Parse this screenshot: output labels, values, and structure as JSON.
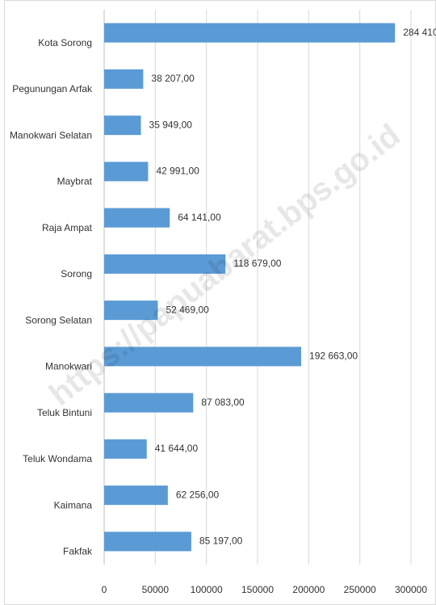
{
  "chart_data": {
    "type": "bar",
    "orientation": "horizontal",
    "categories": [
      "Kota Sorong",
      "Pegunungan Arfak",
      "Manokwari Selatan",
      "Maybrat",
      "Raja Ampat",
      "Sorong",
      "Sorong Selatan",
      "Manokwari",
      "Teluk Bintuni",
      "Teluk Wondama",
      "Kaimana",
      "Fakfak"
    ],
    "values": [
      284410,
      38207,
      35949,
      42991,
      64141,
      118679,
      52469,
      192663,
      87083,
      41644,
      62256,
      85197
    ],
    "value_labels": [
      "284 410",
      "38 207,00",
      "35 949,00",
      "42 991,00",
      "64 141,00",
      "118 679,00",
      "52 469,00",
      "192 663,00",
      "87 083,00",
      "41 644,00",
      "62 256,00",
      "85 197,00"
    ],
    "color": "#5b9bd5",
    "xlim": [
      0,
      300000
    ],
    "xticks": [
      0,
      50000,
      100000,
      150000,
      200000,
      250000,
      300000
    ],
    "grid": true,
    "watermark": "https://papuabarat.bps.go.id"
  }
}
